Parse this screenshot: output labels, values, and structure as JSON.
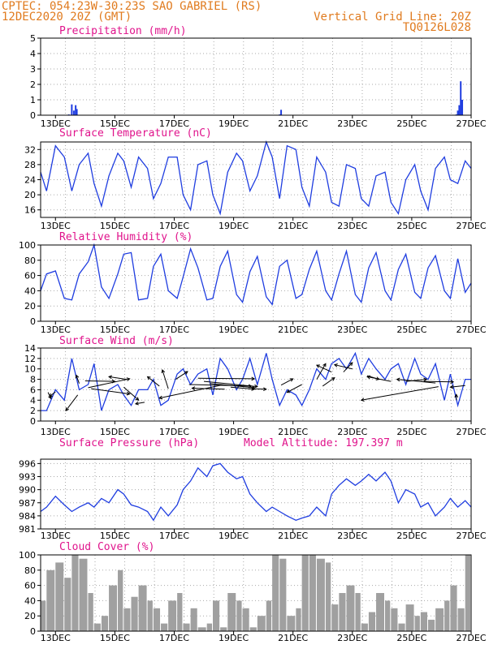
{
  "header": {
    "line1": "CPTEC:  054:23W-30:23S  SAO GABRIEL (RS)",
    "line2": "12DEC2020 20Z (GMT)",
    "right1": "Vertical Grid Line: 20Z",
    "right2": "TQ0126L028"
  },
  "colors": {
    "header": "#e07b1f",
    "title": "#e0148c",
    "series": "#1f3de0",
    "cloud": "#a0a0a0",
    "grid": "#aaaaaa",
    "axis": "#000000"
  },
  "x_tick_labels": [
    "13DEC",
    "15DEC",
    "17DEC",
    "19DEC",
    "21DEC",
    "23DEC",
    "25DEC",
    "27DEC"
  ],
  "chart_data": [
    {
      "type": "bar",
      "title": "Precipitation (mm/h)",
      "unit": "mm/h",
      "ylim": [
        0,
        5
      ],
      "yticks": [
        0,
        1,
        2,
        3,
        4,
        5
      ],
      "x": [
        13.45,
        13.55,
        13.62,
        13.68,
        13.72,
        20.55,
        20.6,
        26.5,
        26.55,
        26.6,
        26.65,
        26.7
      ],
      "values": [
        0.05,
        0.7,
        0.3,
        0.65,
        0.4,
        0.05,
        0.35,
        0.05,
        0.3,
        0.65,
        2.2,
        1.0
      ]
    },
    {
      "type": "line",
      "title": "Surface Temperature (nC)",
      "unit": "nC",
      "ylim": [
        14,
        34
      ],
      "yticks": [
        16,
        20,
        24,
        28,
        32
      ],
      "x": [
        12.5,
        12.7,
        13.0,
        13.3,
        13.55,
        13.8,
        14.1,
        14.3,
        14.55,
        14.8,
        15.1,
        15.3,
        15.55,
        15.8,
        16.1,
        16.3,
        16.55,
        16.8,
        17.1,
        17.3,
        17.55,
        17.8,
        18.1,
        18.3,
        18.55,
        18.8,
        19.1,
        19.3,
        19.55,
        19.8,
        20.1,
        20.3,
        20.55,
        20.8,
        21.1,
        21.3,
        21.55,
        21.8,
        22.1,
        22.3,
        22.55,
        22.8,
        23.1,
        23.3,
        23.55,
        23.8,
        24.1,
        24.3,
        24.55,
        24.8,
        25.1,
        25.3,
        25.55,
        25.8,
        26.1,
        26.3,
        26.55,
        26.8,
        27.0
      ],
      "values": [
        26,
        21,
        33,
        30,
        21,
        28,
        31,
        23,
        17,
        25,
        31,
        29,
        22,
        30,
        27,
        19,
        23,
        30,
        30,
        20,
        16,
        28,
        29,
        20,
        15,
        26,
        31,
        29,
        21,
        25,
        34,
        30,
        19,
        33,
        32,
        22,
        17,
        30,
        26,
        18,
        17,
        28,
        27,
        19,
        17,
        25,
        26,
        18,
        15,
        24,
        28,
        21,
        16,
        27,
        30,
        24,
        23,
        29,
        27
      ]
    },
    {
      "type": "line",
      "title": "Relative Humidity (%)",
      "unit": "%",
      "ylim": [
        0,
        100
      ],
      "yticks": [
        0,
        20,
        40,
        60,
        80,
        100
      ],
      "x": [
        12.5,
        12.7,
        13.0,
        13.3,
        13.55,
        13.8,
        14.1,
        14.3,
        14.55,
        14.8,
        15.1,
        15.3,
        15.55,
        15.8,
        16.1,
        16.3,
        16.55,
        16.8,
        17.1,
        17.3,
        17.55,
        17.8,
        18.1,
        18.3,
        18.55,
        18.8,
        19.1,
        19.3,
        19.55,
        19.8,
        20.1,
        20.3,
        20.55,
        20.8,
        21.1,
        21.3,
        21.55,
        21.8,
        22.1,
        22.3,
        22.55,
        22.8,
        23.1,
        23.3,
        23.55,
        23.8,
        24.1,
        24.3,
        24.55,
        24.8,
        25.1,
        25.3,
        25.55,
        25.8,
        26.1,
        26.3,
        26.55,
        26.8,
        27.0
      ],
      "values": [
        40,
        62,
        66,
        30,
        28,
        62,
        78,
        100,
        45,
        30,
        62,
        88,
        90,
        28,
        30,
        72,
        88,
        40,
        30,
        58,
        95,
        70,
        28,
        30,
        72,
        92,
        35,
        25,
        65,
        85,
        32,
        22,
        72,
        80,
        30,
        35,
        68,
        92,
        40,
        28,
        62,
        92,
        35,
        25,
        70,
        90,
        40,
        28,
        68,
        88,
        38,
        30,
        70,
        86,
        40,
        30,
        82,
        38,
        50
      ]
    },
    {
      "type": "line",
      "title": "Surface Wind (m/s)",
      "unit": "m/s",
      "ylim": [
        0,
        14
      ],
      "yticks": [
        0,
        2,
        4,
        6,
        8,
        10,
        12,
        14
      ],
      "x": [
        12.5,
        12.7,
        13.0,
        13.3,
        13.55,
        13.8,
        14.1,
        14.3,
        14.55,
        14.8,
        15.1,
        15.3,
        15.55,
        15.8,
        16.1,
        16.3,
        16.55,
        16.8,
        17.1,
        17.3,
        17.55,
        17.8,
        18.1,
        18.3,
        18.55,
        18.8,
        19.1,
        19.3,
        19.55,
        19.8,
        20.1,
        20.3,
        20.55,
        20.8,
        21.1,
        21.3,
        21.55,
        21.8,
        22.1,
        22.3,
        22.55,
        22.8,
        23.1,
        23.3,
        23.55,
        23.8,
        24.1,
        24.3,
        24.55,
        24.8,
        25.1,
        25.3,
        25.55,
        25.8,
        26.1,
        26.3,
        26.55,
        26.8,
        27.0
      ],
      "values": [
        2,
        2,
        6,
        4,
        12,
        6,
        7,
        11,
        2,
        6,
        7,
        5,
        3,
        6,
        6,
        8,
        3,
        4,
        9,
        10,
        7,
        9,
        10,
        5,
        12,
        10,
        6,
        8,
        12,
        7,
        13,
        8,
        3,
        6,
        5,
        3,
        6,
        10,
        8,
        11,
        12,
        10,
        13,
        9,
        12,
        10,
        8,
        10,
        11,
        7,
        12,
        9,
        8,
        11,
        4,
        9,
        3,
        8,
        8
      ],
      "arrows": [
        [
          12.75,
          5.5,
          0.1,
          -1.2
        ],
        [
          13.0,
          5.6,
          -0.2,
          -0.9
        ],
        [
          13.75,
          5.0,
          -0.4,
          -3.0
        ],
        [
          13.8,
          7.2,
          -0.1,
          1.6
        ],
        [
          14.0,
          7.7,
          1.0,
          -0.1
        ],
        [
          14.1,
          6.4,
          1.4,
          1.7
        ],
        [
          14.2,
          6.2,
          1.3,
          -1.0
        ],
        [
          15.3,
          6.5,
          0.5,
          -2.5
        ],
        [
          15.4,
          8.0,
          -0.6,
          0.5
        ],
        [
          16.0,
          3.6,
          -0.3,
          -0.3
        ],
        [
          16.5,
          6.7,
          -0.4,
          1.8
        ],
        [
          16.8,
          6.2,
          -0.2,
          3.6
        ],
        [
          17.05,
          8.0,
          0.4,
          1.5
        ],
        [
          17.5,
          7.0,
          2.1,
          -0.3
        ],
        [
          17.8,
          8.2,
          1.9,
          -0.1
        ],
        [
          18.0,
          7.6,
          1.8,
          -1.0
        ],
        [
          18.2,
          7.2,
          1.5,
          -0.8
        ],
        [
          18.6,
          6.9,
          -2.1,
          -2.5
        ],
        [
          18.7,
          6.1,
          -1.1,
          0.2
        ],
        [
          18.9,
          6.5,
          0.8,
          -0.4
        ],
        [
          19.5,
          6.2,
          0.6,
          -0.1
        ],
        [
          20.6,
          6.9,
          0.4,
          1.2
        ],
        [
          21.3,
          7.0,
          -0.5,
          -1.5
        ],
        [
          21.8,
          8.0,
          0.3,
          3.0
        ],
        [
          22.0,
          6.7,
          0.4,
          1.6
        ],
        [
          22.3,
          9.4,
          -0.5,
          1.3
        ],
        [
          22.7,
          9.4,
          0.3,
          1.8
        ],
        [
          23.0,
          10.0,
          -0.6,
          0.8
        ],
        [
          23.5,
          8.7,
          0.4,
          -0.7
        ],
        [
          24.3,
          7.6,
          -0.8,
          0.9
        ],
        [
          24.8,
          7.6,
          0.7,
          0.4
        ],
        [
          25.4,
          7.6,
          1.0,
          -0.1
        ],
        [
          25.8,
          7.3,
          -1.3,
          0.7
        ],
        [
          25.9,
          6.6,
          -2.6,
          -2.6
        ],
        [
          26.5,
          4.0,
          0.0,
          1.1
        ],
        [
          26.8,
          6.8,
          -0.5,
          -0.3
        ]
      ]
    },
    {
      "type": "line",
      "title": "Surface Pressure (hPa)",
      "subtitle": "Model Altitude: 197.397 m",
      "unit": "hPa",
      "ylim": [
        981,
        997
      ],
      "yticks": [
        981,
        984,
        987,
        990,
        993,
        996
      ],
      "x": [
        12.5,
        12.7,
        13.0,
        13.3,
        13.55,
        13.8,
        14.1,
        14.3,
        14.55,
        14.8,
        15.1,
        15.3,
        15.55,
        15.8,
        16.1,
        16.3,
        16.55,
        16.8,
        17.1,
        17.3,
        17.55,
        17.8,
        18.1,
        18.3,
        18.55,
        18.8,
        19.1,
        19.3,
        19.55,
        19.8,
        20.1,
        20.3,
        20.55,
        20.8,
        21.1,
        21.3,
        21.55,
        21.8,
        22.1,
        22.3,
        22.55,
        22.8,
        23.1,
        23.3,
        23.55,
        23.8,
        24.1,
        24.3,
        24.55,
        24.8,
        25.1,
        25.3,
        25.55,
        25.8,
        26.1,
        26.3,
        26.55,
        26.8,
        27.0
      ],
      "values": [
        985,
        986,
        988.5,
        986.5,
        985,
        986,
        987,
        986,
        988,
        987,
        990,
        989,
        986.5,
        986,
        985,
        983,
        986,
        984,
        986.5,
        990,
        992,
        995,
        993,
        995.5,
        996,
        994,
        992.5,
        993,
        989,
        987,
        985,
        986,
        985,
        984,
        983,
        983.5,
        984,
        986,
        984,
        989,
        991,
        992.5,
        991,
        992,
        993.5,
        992,
        994,
        992,
        987,
        990,
        989,
        986,
        987,
        984,
        986,
        988,
        986,
        987.5,
        986
      ]
    },
    {
      "type": "area",
      "title": "Cloud Cover (%)",
      "unit": "%",
      "ylim": [
        0,
        100
      ],
      "yticks": [
        0,
        20,
        40,
        60,
        80,
        100
      ],
      "x": [
        12.5,
        12.7,
        13.0,
        13.3,
        13.55,
        13.8,
        14.1,
        14.3,
        14.55,
        14.8,
        15.1,
        15.3,
        15.55,
        15.8,
        16.1,
        16.3,
        16.55,
        16.8,
        17.1,
        17.3,
        17.55,
        17.8,
        18.1,
        18.3,
        18.55,
        18.8,
        19.1,
        19.3,
        19.55,
        19.8,
        20.1,
        20.3,
        20.55,
        20.8,
        21.1,
        21.3,
        21.55,
        21.8,
        22.1,
        22.3,
        22.55,
        22.8,
        23.1,
        23.3,
        23.55,
        23.8,
        24.1,
        24.3,
        24.55,
        24.8,
        25.1,
        25.3,
        25.55,
        25.8,
        26.1,
        26.3,
        26.55,
        26.8,
        27.0
      ],
      "values": [
        40,
        80,
        90,
        70,
        100,
        95,
        50,
        10,
        20,
        60,
        80,
        30,
        45,
        60,
        40,
        30,
        10,
        40,
        50,
        10,
        30,
        5,
        10,
        40,
        5,
        50,
        40,
        30,
        5,
        20,
        40,
        100,
        95,
        20,
        30,
        100,
        100,
        95,
        90,
        35,
        50,
        60,
        50,
        10,
        25,
        50,
        40,
        30,
        10,
        35,
        20,
        25,
        15,
        30,
        40,
        60,
        30,
        100,
        90
      ]
    }
  ]
}
